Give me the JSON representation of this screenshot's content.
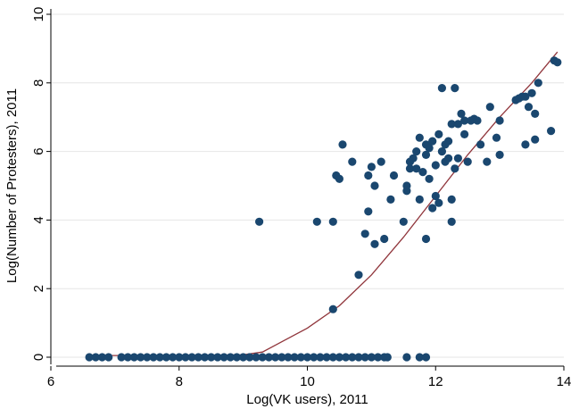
{
  "chart_data": {
    "type": "scatter",
    "title": "",
    "xlabel": "Log(VK users), 2011",
    "ylabel": "Log(Number of Protesters), 2011",
    "xlim": [
      6,
      14
    ],
    "ylim": [
      0,
      10
    ],
    "xticks": [
      "6",
      "8",
      "10",
      "12",
      "14"
    ],
    "yticks": [
      "0",
      "2",
      "4",
      "6",
      "8",
      "10"
    ],
    "grid": "horizontal",
    "colors": {
      "points": "#1a476f",
      "fit_line": "#90353b"
    },
    "series": [
      {
        "type": "scatter",
        "points": [
          [
            6.6,
            0
          ],
          [
            6.7,
            0
          ],
          [
            6.8,
            0
          ],
          [
            6.9,
            0
          ],
          [
            7.1,
            0
          ],
          [
            7.2,
            0
          ],
          [
            7.3,
            0
          ],
          [
            7.4,
            0
          ],
          [
            7.5,
            0
          ],
          [
            7.6,
            0
          ],
          [
            7.7,
            0
          ],
          [
            7.8,
            0
          ],
          [
            7.9,
            0
          ],
          [
            8.0,
            0
          ],
          [
            8.1,
            0
          ],
          [
            8.2,
            0
          ],
          [
            8.3,
            0
          ],
          [
            8.4,
            0
          ],
          [
            8.5,
            0
          ],
          [
            8.6,
            0
          ],
          [
            8.7,
            0
          ],
          [
            8.8,
            0
          ],
          [
            8.9,
            0
          ],
          [
            9.0,
            0
          ],
          [
            9.1,
            0
          ],
          [
            9.2,
            0
          ],
          [
            9.3,
            0
          ],
          [
            9.4,
            0
          ],
          [
            9.5,
            0
          ],
          [
            9.6,
            0
          ],
          [
            9.7,
            0
          ],
          [
            9.8,
            0
          ],
          [
            9.9,
            0
          ],
          [
            10.0,
            0
          ],
          [
            10.1,
            0
          ],
          [
            10.2,
            0
          ],
          [
            10.3,
            0
          ],
          [
            10.4,
            0
          ],
          [
            10.5,
            0
          ],
          [
            10.6,
            0
          ],
          [
            10.7,
            0
          ],
          [
            10.8,
            0
          ],
          [
            10.9,
            0
          ],
          [
            11.0,
            0
          ],
          [
            11.1,
            0
          ],
          [
            11.2,
            0
          ],
          [
            11.25,
            0
          ],
          [
            11.55,
            0
          ],
          [
            11.75,
            0
          ],
          [
            11.85,
            0
          ],
          [
            9.25,
            3.95
          ],
          [
            10.15,
            3.95
          ],
          [
            10.4,
            3.95
          ],
          [
            10.4,
            1.4
          ],
          [
            10.8,
            2.4
          ],
          [
            10.45,
            5.3
          ],
          [
            10.5,
            5.2
          ],
          [
            10.55,
            6.2
          ],
          [
            10.7,
            5.7
          ],
          [
            10.9,
            3.6
          ],
          [
            10.95,
            4.25
          ],
          [
            10.95,
            5.3
          ],
          [
            11.0,
            5.55
          ],
          [
            11.05,
            3.3
          ],
          [
            11.05,
            5.0
          ],
          [
            11.15,
            5.7
          ],
          [
            11.2,
            3.45
          ],
          [
            11.3,
            4.6
          ],
          [
            11.35,
            5.3
          ],
          [
            11.5,
            3.95
          ],
          [
            11.55,
            4.85
          ],
          [
            11.55,
            5.0
          ],
          [
            11.6,
            5.5
          ],
          [
            11.6,
            5.7
          ],
          [
            11.65,
            5.8
          ],
          [
            11.7,
            5.5
          ],
          [
            11.7,
            6.0
          ],
          [
            11.75,
            4.6
          ],
          [
            11.75,
            6.4
          ],
          [
            11.8,
            5.4
          ],
          [
            11.85,
            3.45
          ],
          [
            11.85,
            5.9
          ],
          [
            11.85,
            6.2
          ],
          [
            11.9,
            5.2
          ],
          [
            11.9,
            6.1
          ],
          [
            11.95,
            6.3
          ],
          [
            11.95,
            4.35
          ],
          [
            12.0,
            4.7
          ],
          [
            12.0,
            5.6
          ],
          [
            12.05,
            6.5
          ],
          [
            12.05,
            4.5
          ],
          [
            12.1,
            7.85
          ],
          [
            12.1,
            6.0
          ],
          [
            12.15,
            5.7
          ],
          [
            12.15,
            6.2
          ],
          [
            12.2,
            5.8
          ],
          [
            12.2,
            6.3
          ],
          [
            12.25,
            3.95
          ],
          [
            12.25,
            4.6
          ],
          [
            12.25,
            6.8
          ],
          [
            12.3,
            7.85
          ],
          [
            12.3,
            5.5
          ],
          [
            12.35,
            5.8
          ],
          [
            12.35,
            6.8
          ],
          [
            12.4,
            7.1
          ],
          [
            12.45,
            6.5
          ],
          [
            12.45,
            6.9
          ],
          [
            12.5,
            5.7
          ],
          [
            12.55,
            6.9
          ],
          [
            12.6,
            6.95
          ],
          [
            12.65,
            6.9
          ],
          [
            12.7,
            6.2
          ],
          [
            12.8,
            5.7
          ],
          [
            12.85,
            7.3
          ],
          [
            12.95,
            6.4
          ],
          [
            13.0,
            5.9
          ],
          [
            13.0,
            6.9
          ],
          [
            13.25,
            7.5
          ],
          [
            13.3,
            7.55
          ],
          [
            13.35,
            7.6
          ],
          [
            13.4,
            7.6
          ],
          [
            13.4,
            6.2
          ],
          [
            13.45,
            7.3
          ],
          [
            13.5,
            7.7
          ],
          [
            13.55,
            6.35
          ],
          [
            13.55,
            7.1
          ],
          [
            13.6,
            8.0
          ],
          [
            13.8,
            6.6
          ],
          [
            13.85,
            8.65
          ],
          [
            13.9,
            8.6
          ]
        ]
      },
      {
        "type": "line",
        "x": [
          6.6,
          8.0,
          9.0,
          9.3,
          9.5,
          9.7,
          10.0,
          10.5,
          11.0,
          11.5,
          12.0,
          12.5,
          13.0,
          13.5,
          13.9
        ],
        "y": [
          0.05,
          0.05,
          0.07,
          0.15,
          0.35,
          0.55,
          0.85,
          1.5,
          2.4,
          3.5,
          4.7,
          5.9,
          7.0,
          8.0,
          8.9
        ]
      }
    ]
  }
}
